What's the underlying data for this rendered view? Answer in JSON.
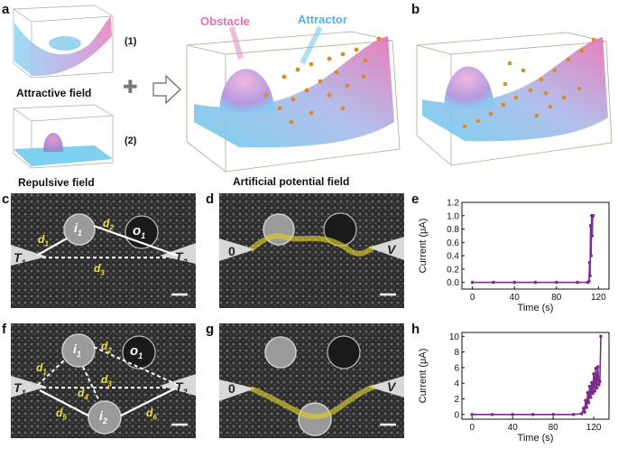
{
  "panel_labels": {
    "a": "a",
    "b": "b",
    "c": "c",
    "d": "d",
    "e": "e",
    "f": "f",
    "g": "g",
    "h": "h"
  },
  "panel_a": {
    "item1_label": "(1)",
    "item2_label": "(2)",
    "attractive_caption": "Attractive field",
    "repulsive_caption": "Repulsive field",
    "combine_symbol": "✚",
    "obstacle_label": "Obstacle",
    "attractor_label": "Attractor",
    "main_caption": "Artificial potential field"
  },
  "sem_c": {
    "i1": "i",
    "i1_sub": "1",
    "o1": "o",
    "o1_sub": "1",
    "t1": "T",
    "t1_sub": "1",
    "t2": "T",
    "t2_sub": "2",
    "d1": "d",
    "d1_sub": "1",
    "d2": "d",
    "d2_sub": "2",
    "d3": "d",
    "d3_sub": "3"
  },
  "sem_d": {
    "left_terminal": "0",
    "right_terminal": "V"
  },
  "sem_f": {
    "i1": "i",
    "i1_sub": "1",
    "i2": "i",
    "i2_sub": "2",
    "o1": "o",
    "o1_sub": "1",
    "t1": "T",
    "t1_sub": "1",
    "t2": "T",
    "t2_sub": "2",
    "d1": "d",
    "d1_sub": "1",
    "d2": "d",
    "d2_sub": "2",
    "d3": "d",
    "d3_sub": "3",
    "d4": "d",
    "d4_sub": "4",
    "d5": "d",
    "d5_sub": "5",
    "d6": "d",
    "d6_sub": "6"
  },
  "sem_g": {
    "left_terminal": "0",
    "right_terminal": "V"
  },
  "colors": {
    "distance_label": "#f2e33a",
    "trace": "#7b2b8c",
    "path_highlight": "#d9cf2e",
    "potential_high": "#e56fb3",
    "potential_low": "#5ec8e6",
    "particle": "#d98a2b"
  },
  "chart_data": [
    {
      "panel": "e",
      "type": "line",
      "xlabel": "Time (s)",
      "ylabel": "Current (μA)",
      "xlim": [
        -10,
        130
      ],
      "ylim": [
        -0.1,
        1.2
      ],
      "xticks": [
        0,
        40,
        80,
        120
      ],
      "yticks": [
        0.0,
        0.2,
        0.4,
        0.6,
        0.8,
        1.0,
        1.2
      ],
      "ytick_labels": [
        "0.0",
        "0.2",
        "0.4",
        "0.6",
        "0.8",
        "1.0",
        "1.2"
      ],
      "series": [
        {
          "x": [
            0,
            20,
            40,
            60,
            80,
            100,
            110,
            111,
            111.5,
            112,
            112.5,
            113,
            113.5,
            114,
            114.5,
            115
          ],
          "y": [
            0,
            0,
            0,
            0,
            0,
            0,
            0,
            0.02,
            0.3,
            0.1,
            0.85,
            0.4,
            1.0,
            0.7,
            1.0,
            1.0
          ]
        }
      ]
    },
    {
      "panel": "h",
      "type": "line",
      "xlabel": "Time (s)",
      "ylabel": "Current (μA)",
      "xlim": [
        -10,
        135
      ],
      "ylim": [
        -0.6,
        10.5
      ],
      "xticks": [
        0,
        40,
        80,
        120
      ],
      "yticks": [
        0,
        2,
        4,
        6,
        8,
        10
      ],
      "ytick_labels": [
        "0",
        "2",
        "4",
        "6",
        "8",
        "10"
      ],
      "series": [
        {
          "x": [
            0,
            20,
            40,
            60,
            80,
            100,
            108,
            110,
            111,
            112,
            113,
            114,
            115,
            116,
            117,
            118,
            119,
            120,
            121,
            122,
            123,
            124,
            125,
            126,
            127
          ],
          "y": [
            0,
            0,
            0,
            0,
            0,
            0,
            0.1,
            0.8,
            0.3,
            1.8,
            0.9,
            2.8,
            1.5,
            3.6,
            2.2,
            4.1,
            2.7,
            5.2,
            3.0,
            5.9,
            3.4,
            6.1,
            3.8,
            4.2,
            10
          ]
        }
      ]
    }
  ]
}
